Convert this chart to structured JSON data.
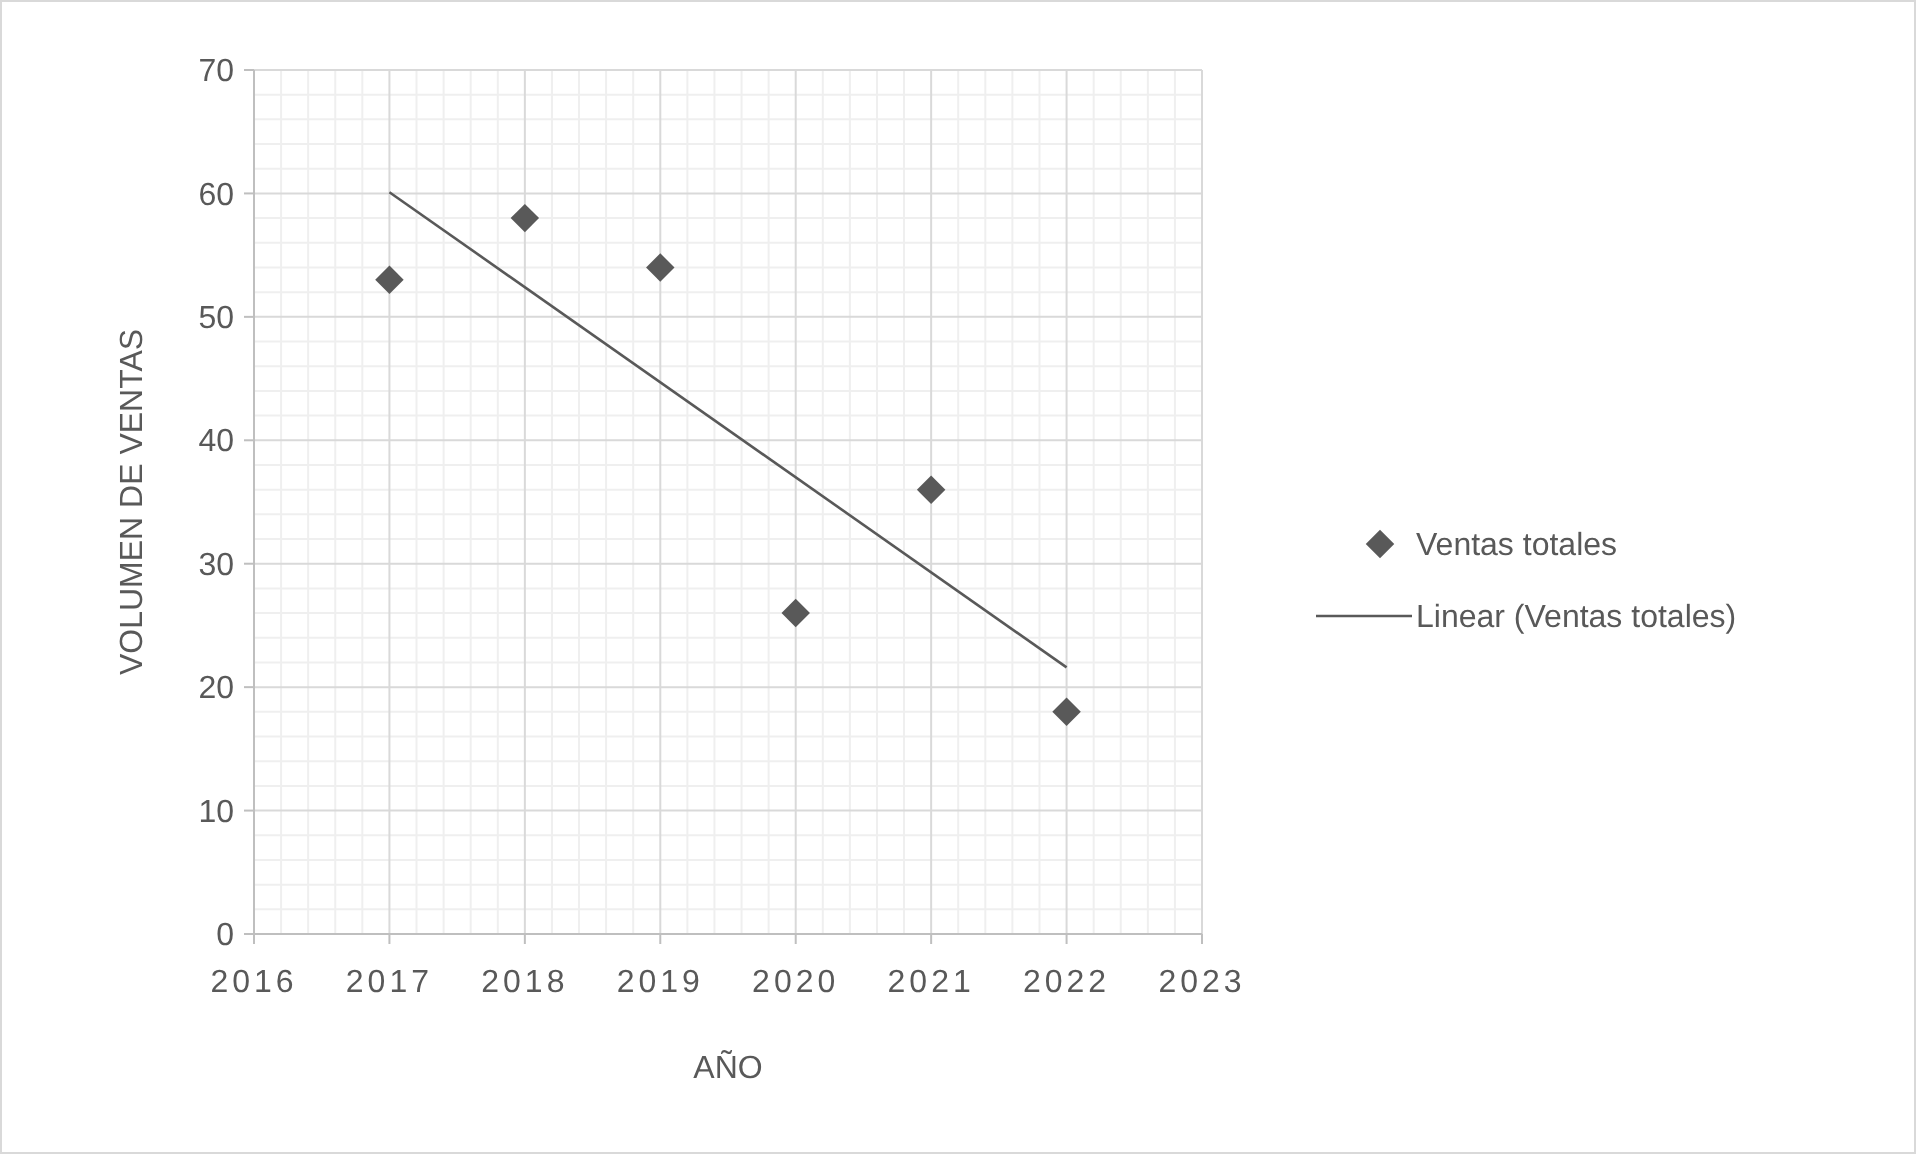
{
  "chart_data": {
    "type": "scatter",
    "xlabel": "AÑO",
    "ylabel": "VOLUMEN DE VENTAS",
    "xlim": [
      2016,
      2023
    ],
    "xticks": [
      2016,
      2017,
      2018,
      2019,
      2020,
      2021,
      2022,
      2023
    ],
    "ylim": [
      0,
      70
    ],
    "yticks": [
      0,
      10,
      20,
      30,
      40,
      50,
      60,
      70
    ],
    "grid": true,
    "legend": "right",
    "series": [
      {
        "name": "Ventas totales",
        "color": "#595959",
        "marker": "diamond",
        "x": [
          2017,
          2018,
          2019,
          2020,
          2021,
          2022
        ],
        "values": [
          53,
          58,
          54,
          26,
          36,
          18
        ]
      },
      {
        "name": "Linear (Ventas totales)",
        "type": "line",
        "color": "#595959",
        "line_style": "solid",
        "marker": "none",
        "x": [
          2017,
          2022
        ],
        "values": [
          60.1,
          21.6
        ]
      }
    ]
  }
}
